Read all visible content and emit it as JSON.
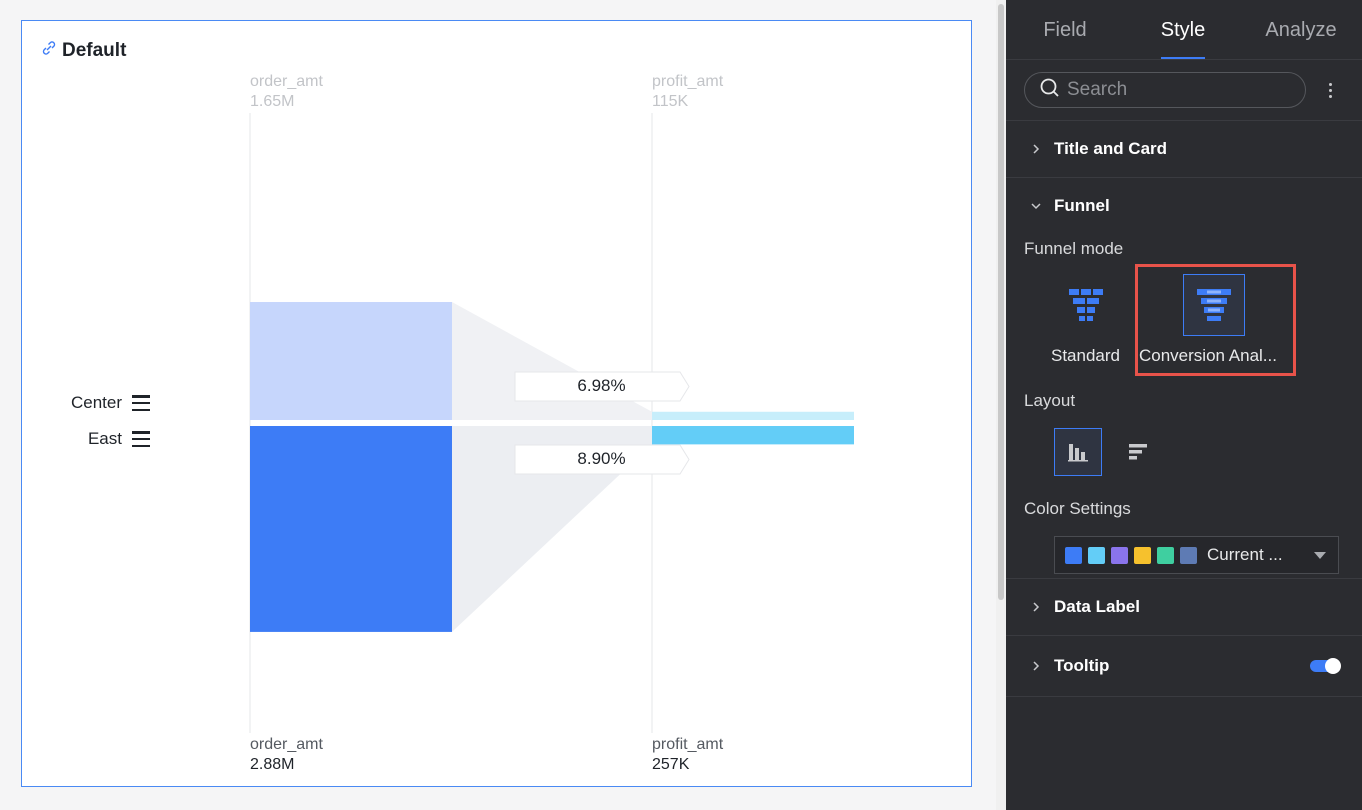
{
  "card": {
    "title": "Default"
  },
  "chart_data": {
    "type": "funnel",
    "stages": [
      {
        "measure": "order_amt",
        "top_total": "1.65M",
        "bottom_total": "2.88M"
      },
      {
        "measure": "profit_amt",
        "top_total": "115K",
        "bottom_total": "257K"
      }
    ],
    "series": [
      {
        "name": "Center",
        "values": [
          1.65,
          0.115
        ],
        "conversion": "6.98%",
        "color_stage1": "#c6d6fc",
        "color_stage2": "#c7eefb"
      },
      {
        "name": "East",
        "values": [
          2.88,
          0.257
        ],
        "conversion": "8.90%",
        "color_stage1": "#3d7cf6",
        "color_stage2": "#63cdf7"
      }
    ],
    "value_unit": "M"
  },
  "panel": {
    "tabs": [
      "Field",
      "Style",
      "Analyze"
    ],
    "active_tab": "Style",
    "search_placeholder": "Search",
    "sections": {
      "title_card": "Title and Card",
      "funnel": "Funnel",
      "data_label": "Data Label",
      "tooltip": "Tooltip"
    },
    "funnel_mode_label": "Funnel mode",
    "modes": [
      "Standard",
      "Conversion Anal..."
    ],
    "selected_mode": "Conversion Anal...",
    "layout_label": "Layout",
    "color_settings_label": "Color Settings",
    "color_scheme": "Current ...",
    "palette": [
      "#3d7cf6",
      "#63cdf7",
      "#8a74ec",
      "#f6c12d",
      "#3fcfa0",
      "#5e7bb4"
    ],
    "tooltip_enabled": true
  }
}
